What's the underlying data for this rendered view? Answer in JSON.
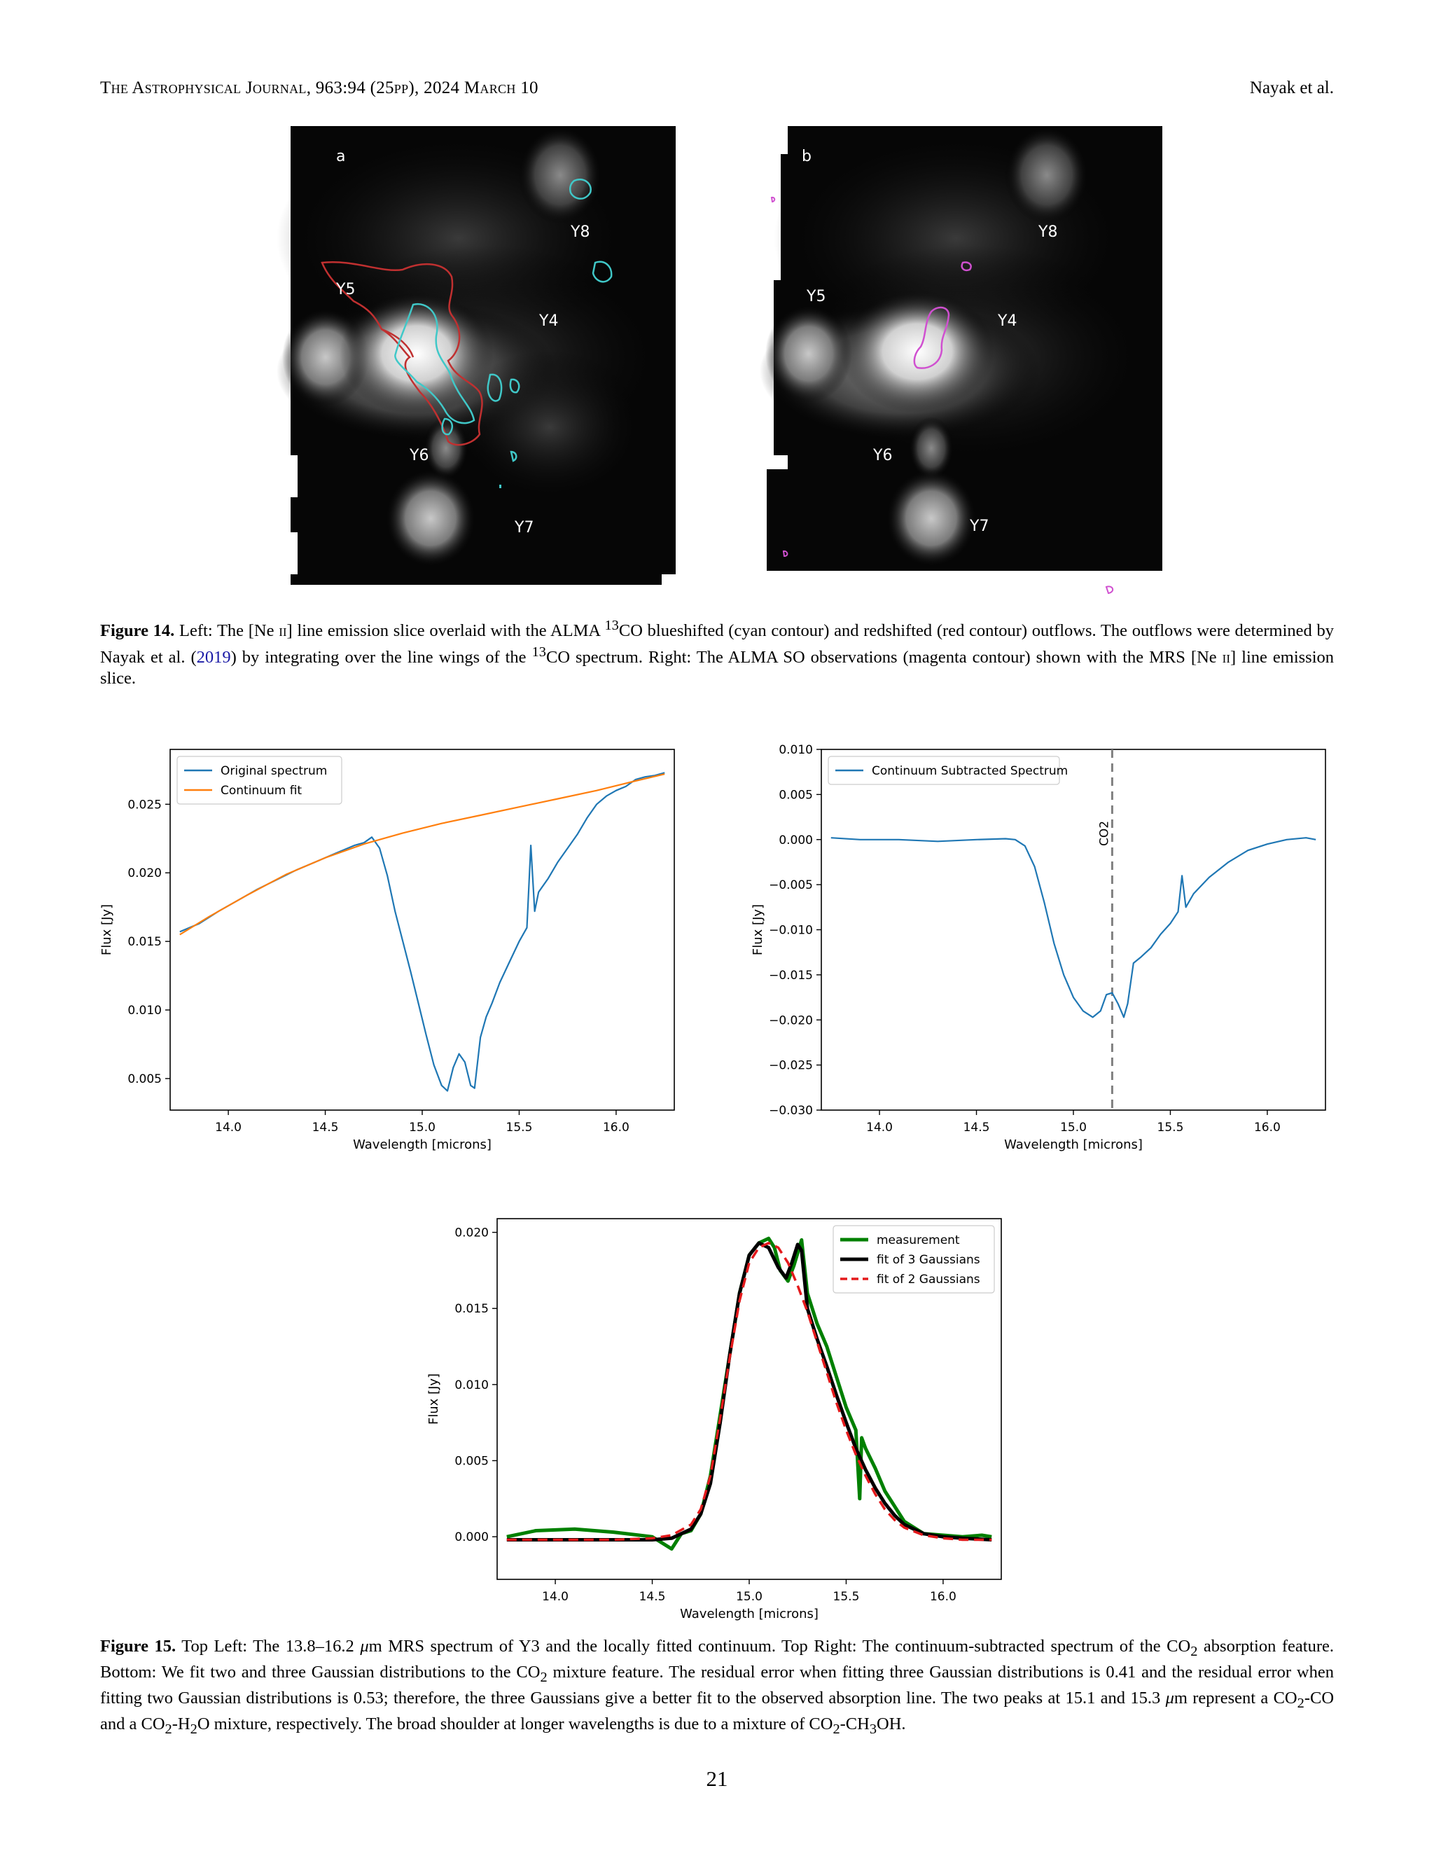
{
  "header": {
    "journal": "The Astrophysical Journal, 963:94 (25pp), 2024 March 10",
    "authors": "Nayak et al."
  },
  "figure14": {
    "panel_a": {
      "letter": "a",
      "labels": [
        "Y8",
        "Y5",
        "Y4",
        "Y6",
        "Y7"
      ],
      "contour_colors": {
        "blueshifted": "#40c8c8",
        "redshifted": "#c03030"
      }
    },
    "panel_b": {
      "letter": "b",
      "labels": [
        "Y8",
        "Y5",
        "Y4",
        "Y6",
        "Y7"
      ],
      "contour_colors": {
        "so": "#d050d0"
      }
    },
    "caption": {
      "label": "Figure 14.",
      "parts": [
        "Left: The [Ne ",
        "ii",
        "] line emission slice overlaid with the ALMA ",
        "13",
        "CO blueshifted (cyan contour) and redshifted (red contour) outflows. The outflows were determined by Nayak et al. (",
        "2019",
        ") by integrating over the line wings of the ",
        "13",
        "CO spectrum. Right: The ALMA SO observations (magenta contour) shown with the MRS [Ne ",
        "ii",
        "] line emission slice."
      ]
    }
  },
  "figure15": {
    "caption": {
      "label": "Figure 15.",
      "parts": [
        "Top Left: The 13.8–16.2 ",
        "μ",
        "m MRS spectrum of Y3 and the locally fitted continuum. Top Right: The continuum-subtracted spectrum of the CO",
        "2",
        " absorption feature. Bottom: We fit two and three Gaussian distributions to the CO",
        "2",
        " mixture feature. The residual error when fitting three Gaussian distributions is 0.41 and the residual error when fitting two Gaussian distributions is 0.53; therefore, the three Gaussians give a better fit to the observed absorption line. The two peaks at 15.1 and 15.3 ",
        "μ",
        "m represent a CO",
        "2",
        "-CO and a CO",
        "2",
        "-H",
        "2",
        "O mixture, respectively. The broad shoulder at longer wavelengths is due to a mixture of CO",
        "2",
        "-CH",
        "3",
        "OH."
      ]
    }
  },
  "chart_data": [
    {
      "type": "line",
      "xlabel": "Wavelength [microns]",
      "ylabel": "Flux [Jy]",
      "xlim": [
        13.7,
        16.3
      ],
      "ylim": [
        0.0027,
        0.029
      ],
      "xticks": [
        14.0,
        14.5,
        15.0,
        15.5,
        16.0
      ],
      "xtick_labels": [
        "14.0",
        "14.5",
        "15.0",
        "15.5",
        "16.0"
      ],
      "yticks": [
        0.005,
        0.01,
        0.015,
        0.02,
        0.025
      ],
      "ytick_labels": [
        "0.005",
        "0.010",
        "0.015",
        "0.020",
        "0.025"
      ],
      "legend_position": "top-left",
      "grid": false,
      "series": [
        {
          "name": "Original spectrum",
          "color": "#1f77b4",
          "x": [
            13.75,
            13.85,
            13.95,
            14.05,
            14.15,
            14.25,
            14.35,
            14.45,
            14.55,
            14.65,
            14.7,
            14.74,
            14.78,
            14.82,
            14.86,
            14.9,
            14.94,
            14.98,
            15.02,
            15.06,
            15.1,
            15.13,
            15.16,
            15.19,
            15.22,
            15.25,
            15.27,
            15.3,
            15.33,
            15.36,
            15.4,
            15.45,
            15.5,
            15.54,
            15.56,
            15.58,
            15.6,
            15.65,
            15.7,
            15.75,
            15.8,
            15.85,
            15.9,
            15.95,
            16.0,
            16.05,
            16.1,
            16.15,
            16.2,
            16.25
          ],
          "y": [
            0.0157,
            0.0163,
            0.0172,
            0.018,
            0.0188,
            0.0195,
            0.0202,
            0.0208,
            0.0214,
            0.022,
            0.0222,
            0.0226,
            0.0218,
            0.0198,
            0.0172,
            0.015,
            0.0128,
            0.0105,
            0.0082,
            0.006,
            0.0045,
            0.0041,
            0.0058,
            0.0068,
            0.0062,
            0.0045,
            0.0043,
            0.008,
            0.0095,
            0.0105,
            0.012,
            0.0135,
            0.015,
            0.016,
            0.022,
            0.0172,
            0.0186,
            0.0196,
            0.0208,
            0.0218,
            0.0228,
            0.024,
            0.025,
            0.0256,
            0.026,
            0.0263,
            0.0268,
            0.027,
            0.0271,
            0.0273
          ]
        },
        {
          "name": "Continuum fit",
          "color": "#ff7f0e",
          "x": [
            13.75,
            13.9,
            14.1,
            14.3,
            14.5,
            14.7,
            14.9,
            15.1,
            15.3,
            15.5,
            15.7,
            15.9,
            16.1,
            16.25
          ],
          "y": [
            0.0155,
            0.0168,
            0.0184,
            0.0199,
            0.0211,
            0.0221,
            0.0229,
            0.0236,
            0.0242,
            0.0248,
            0.0254,
            0.026,
            0.0267,
            0.0272
          ]
        }
      ]
    },
    {
      "type": "line",
      "xlabel": "Wavelength [microns]",
      "ylabel": "Flux [Jy]",
      "xlim": [
        13.7,
        16.3
      ],
      "ylim": [
        -0.03,
        0.01
      ],
      "xticks": [
        14.0,
        14.5,
        15.0,
        15.5,
        16.0
      ],
      "xtick_labels": [
        "14.0",
        "14.5",
        "15.0",
        "15.5",
        "16.0"
      ],
      "yticks": [
        0.01,
        0.005,
        0.0,
        -0.005,
        -0.01,
        -0.015,
        -0.02,
        -0.025,
        -0.03
      ],
      "ytick_labels": [
        "0.010",
        "0.005",
        "0.000",
        "−0.005",
        "−0.010",
        "−0.015",
        "−0.020",
        "−0.025",
        "−0.030"
      ],
      "legend_position": "top-left",
      "grid": false,
      "annotations": [
        {
          "text": "CO2",
          "x": 15.2,
          "style": "dashed vertical line",
          "color": "#808080"
        }
      ],
      "series": [
        {
          "name": "Continuum Subtracted Spectrum",
          "color": "#1f77b4",
          "x": [
            13.75,
            13.9,
            14.1,
            14.3,
            14.5,
            14.65,
            14.7,
            14.75,
            14.8,
            14.85,
            14.9,
            14.95,
            15.0,
            15.05,
            15.1,
            15.14,
            15.17,
            15.2,
            15.23,
            15.26,
            15.28,
            15.31,
            15.35,
            15.4,
            15.45,
            15.5,
            15.54,
            15.56,
            15.58,
            15.62,
            15.7,
            15.8,
            15.9,
            16.0,
            16.1,
            16.2,
            16.25
          ],
          "y": [
            0.0002,
            0.0,
            0.0,
            -0.0002,
            0.0,
            0.0001,
            0.0,
            -0.0007,
            -0.003,
            -0.007,
            -0.0115,
            -0.015,
            -0.0175,
            -0.019,
            -0.0197,
            -0.019,
            -0.0172,
            -0.017,
            -0.0182,
            -0.0197,
            -0.0182,
            -0.0137,
            -0.013,
            -0.012,
            -0.0105,
            -0.0093,
            -0.008,
            -0.004,
            -0.0075,
            -0.006,
            -0.0042,
            -0.0025,
            -0.0012,
            -0.0005,
            0.0,
            0.0002,
            0.0
          ]
        }
      ]
    },
    {
      "type": "line",
      "xlabel": "Wavelength [microns]",
      "ylabel": "Flux [Jy]",
      "xlim": [
        13.7,
        16.3
      ],
      "ylim": [
        -0.0028,
        0.0209
      ],
      "xticks": [
        14.0,
        14.5,
        15.0,
        15.5,
        16.0
      ],
      "xtick_labels": [
        "14.0",
        "14.5",
        "15.0",
        "15.5",
        "16.0"
      ],
      "yticks": [
        0.0,
        0.005,
        0.01,
        0.015,
        0.02
      ],
      "ytick_labels": [
        "0.000",
        "0.005",
        "0.010",
        "0.015",
        "0.020"
      ],
      "legend_position": "top-right",
      "grid": false,
      "series": [
        {
          "name": "measurement",
          "color": "#008000",
          "style": "solid-thick",
          "x": [
            13.75,
            13.9,
            14.1,
            14.3,
            14.5,
            14.6,
            14.65,
            14.7,
            14.75,
            14.8,
            14.85,
            14.9,
            14.95,
            15.0,
            15.05,
            15.1,
            15.13,
            15.16,
            15.2,
            15.23,
            15.27,
            15.3,
            15.35,
            15.4,
            15.45,
            15.5,
            15.55,
            15.57,
            15.58,
            15.6,
            15.65,
            15.7,
            15.75,
            15.8,
            15.9,
            16.0,
            16.1,
            16.2,
            16.25
          ],
          "y": [
            0.0,
            0.0004,
            0.0005,
            0.0003,
            0.0,
            -0.0008,
            0.0002,
            0.0004,
            0.0015,
            0.004,
            0.008,
            0.012,
            0.016,
            0.0185,
            0.0193,
            0.0196,
            0.019,
            0.0175,
            0.0168,
            0.0178,
            0.0195,
            0.016,
            0.014,
            0.0125,
            0.0105,
            0.0085,
            0.007,
            0.0025,
            0.0065,
            0.0058,
            0.0045,
            0.003,
            0.002,
            0.001,
            0.0002,
            0.0001,
            0.0,
            0.0001,
            0.0
          ]
        },
        {
          "name": "fit of 3 Gaussians",
          "color": "#000000",
          "style": "solid-thick",
          "x": [
            13.75,
            14.0,
            14.3,
            14.5,
            14.6,
            14.7,
            14.75,
            14.8,
            14.85,
            14.9,
            14.95,
            15.0,
            15.05,
            15.1,
            15.15,
            15.19,
            15.22,
            15.25,
            15.27,
            15.3,
            15.35,
            15.4,
            15.45,
            15.5,
            15.55,
            15.6,
            15.65,
            15.7,
            15.75,
            15.8,
            15.9,
            16.0,
            16.1,
            16.25
          ],
          "y": [
            -0.0002,
            -0.0002,
            -0.0002,
            -0.0002,
            -0.0001,
            0.0005,
            0.0015,
            0.0035,
            0.0075,
            0.012,
            0.016,
            0.0185,
            0.0193,
            0.019,
            0.0177,
            0.017,
            0.018,
            0.0192,
            0.0188,
            0.015,
            0.013,
            0.0112,
            0.0093,
            0.0075,
            0.0058,
            0.0044,
            0.0032,
            0.0022,
            0.0014,
            0.0008,
            0.0002,
            0.0,
            -0.0001,
            -0.0002
          ]
        },
        {
          "name": "fit of 2 Gaussians",
          "color": "#e41a1c",
          "style": "dashed",
          "x": [
            13.75,
            14.0,
            14.3,
            14.5,
            14.6,
            14.7,
            14.75,
            14.8,
            14.85,
            14.9,
            14.95,
            15.0,
            15.05,
            15.1,
            15.15,
            15.2,
            15.25,
            15.3,
            15.35,
            15.4,
            15.45,
            15.5,
            15.55,
            15.6,
            15.65,
            15.7,
            15.75,
            15.8,
            15.9,
            16.0,
            16.1,
            16.25
          ],
          "y": [
            -0.0002,
            -0.0002,
            -0.0002,
            -0.0001,
            0.0001,
            0.0008,
            0.0018,
            0.004,
            0.0078,
            0.0118,
            0.0155,
            0.018,
            0.019,
            0.0193,
            0.019,
            0.018,
            0.0165,
            0.0148,
            0.0128,
            0.0108,
            0.0088,
            0.007,
            0.0054,
            0.004,
            0.0028,
            0.0018,
            0.0011,
            0.0006,
            0.0001,
            -0.0001,
            -0.0002,
            -0.0002
          ]
        }
      ]
    }
  ]
}
